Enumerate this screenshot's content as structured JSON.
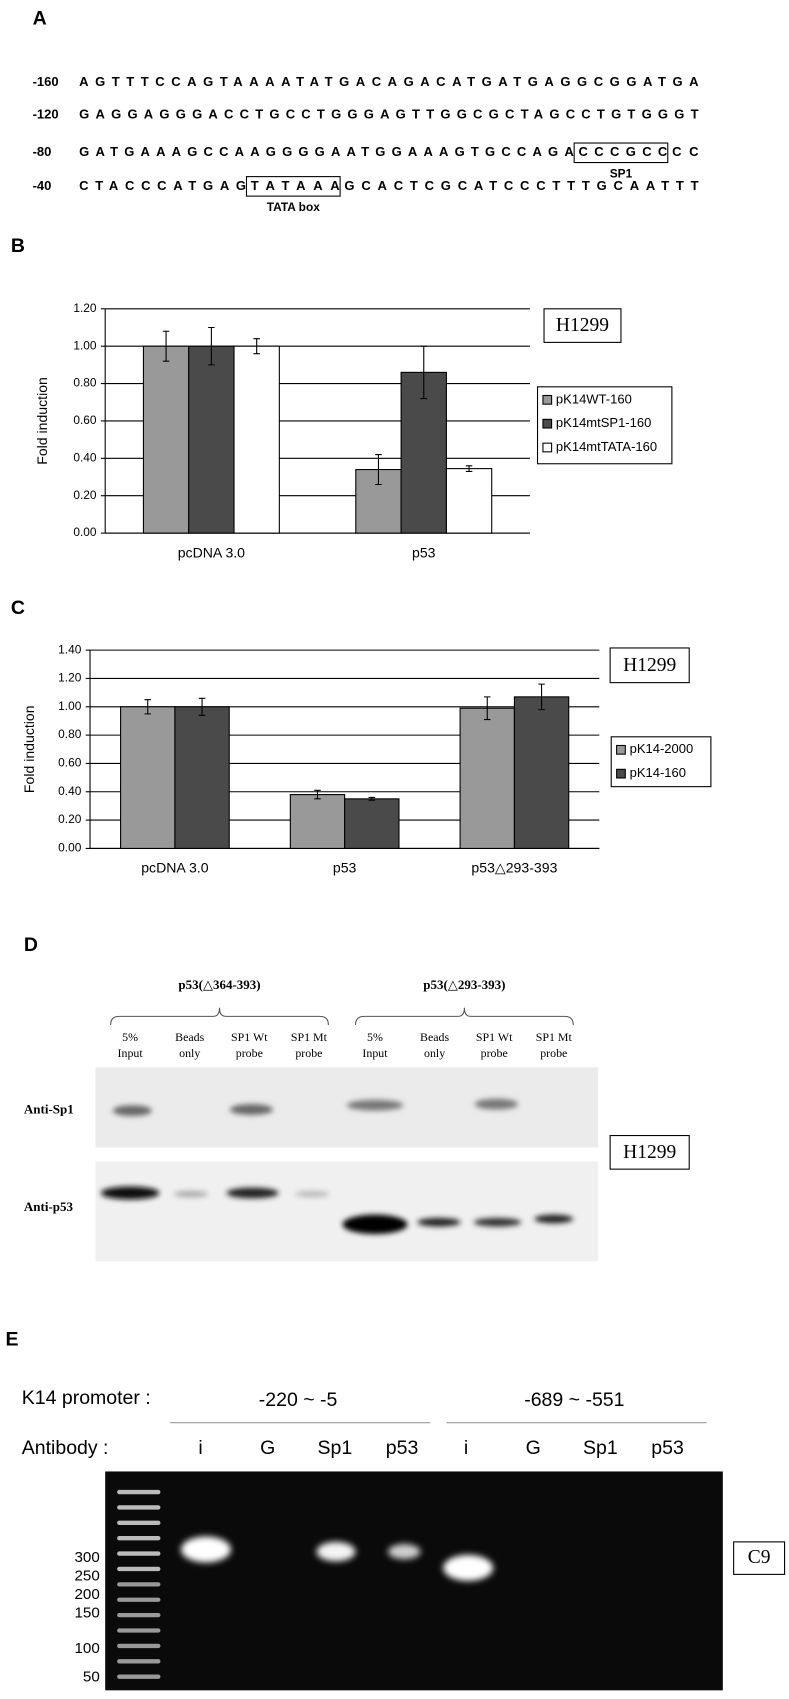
{
  "panel_labels": [
    "A",
    "B",
    "C",
    "D",
    "E"
  ],
  "sequence": {
    "rows": [
      {
        "position": "-160",
        "segments": [
          {
            "text": "AGTTTCCAGTAAAATATGACAGACATGATGAGGCGGATGA"
          }
        ]
      },
      {
        "position": "-120",
        "segments": [
          {
            "text": "GAGGAGGGACCTGCCTGGGAGTTGGCGCTAGCCTGTGGGT"
          }
        ]
      },
      {
        "position": "-80",
        "segments": [
          {
            "text": "GATGAAAGCCAAGGGGAATGGAAAGTGCCAGA"
          },
          {
            "text": "CCCGCC",
            "label": "SP1"
          },
          {
            "text": "CC"
          }
        ]
      },
      {
        "position": "-40",
        "segments": [
          {
            "text": "CTACCCATGAG"
          },
          {
            "text": "TATAAA",
            "label": "TATA box"
          },
          {
            "text": "GCACTCGCATCCCTTTGCAATTT"
          }
        ]
      }
    ]
  },
  "chart_data": [
    {
      "type": "bar",
      "annotation": "H1299",
      "y_label": "Fold induction",
      "categories": [
        "pcDNA 3.0",
        "p53"
      ],
      "series": [
        {
          "name": "pK14WT-160",
          "color": "#999999",
          "values": [
            1.0,
            0.34
          ],
          "errors": [
            0.08,
            0.08
          ]
        },
        {
          "name": "pK14mtSP1-160",
          "color": "#4a4a4a",
          "values": [
            1.0,
            0.86
          ],
          "errors": [
            0.1,
            0.14
          ]
        },
        {
          "name": "pK14mtTATA-160",
          "color": "#ffffff",
          "values": [
            1.0,
            0.345
          ],
          "errors": [
            0.04,
            0.015
          ]
        }
      ],
      "ylim": [
        0,
        1.2
      ],
      "yticks": [
        {
          "value": 0,
          "label": "0.00"
        },
        {
          "value": 0.2,
          "label": "0.20"
        },
        {
          "value": 0.4,
          "label": "0.40"
        },
        {
          "value": 0.6,
          "label": "0.60"
        },
        {
          "value": 0.8,
          "label": "0.80"
        },
        {
          "value": 1,
          "label": "1.00"
        },
        {
          "value": 1.2,
          "label": "1.20"
        }
      ],
      "grid": true
    },
    {
      "type": "bar",
      "annotation": "H1299",
      "y_label": "Fold induction",
      "categories": [
        "pcDNA 3.0",
        "p53",
        "p53△293-393"
      ],
      "series": [
        {
          "name": "pK14-2000",
          "color": "#999999",
          "values": [
            1.0,
            0.38,
            0.99
          ],
          "errors": [
            0.05,
            0.03,
            0.08
          ]
        },
        {
          "name": "pK14-160",
          "color": "#4a4a4a",
          "values": [
            1.0,
            0.35,
            1.07
          ],
          "errors": [
            0.06,
            0.01,
            0.09
          ]
        }
      ],
      "ylim": [
        0,
        1.4
      ],
      "yticks": [
        {
          "value": 0,
          "label": "0.00"
        },
        {
          "value": 0.2,
          "label": "0.20"
        },
        {
          "value": 0.4,
          "label": "0.40"
        },
        {
          "value": 0.6,
          "label": "0.60"
        },
        {
          "value": 0.8,
          "label": "0.80"
        },
        {
          "value": 1,
          "label": "1.00"
        },
        {
          "value": 1.2,
          "label": "1.20"
        },
        {
          "value": 1.4,
          "label": "1.40"
        }
      ],
      "grid": true
    }
  ],
  "pulldown": {
    "groups": [
      {
        "label": "p53(△364-393)",
        "lanes": [
          [
            "5%",
            "Input"
          ],
          [
            "Beads",
            "only"
          ],
          [
            "SP1 Wt",
            "probe"
          ],
          [
            "SP1 Mt",
            "probe"
          ]
        ]
      },
      {
        "label": "p53(△293-393)",
        "lanes": [
          [
            "5%",
            "Input"
          ],
          [
            "Beads",
            "only"
          ],
          [
            "SP1 Wt",
            "probe"
          ],
          [
            "SP1 Mt",
            "probe"
          ]
        ]
      }
    ],
    "rows": [
      "Anti-Sp1",
      "Anti-p53"
    ],
    "cell_line": "H1299"
  },
  "chip": {
    "promoter_label": "K14 promoter :",
    "antibody_label": "Antibody :",
    "regions": [
      {
        "label": "-220 ~ -5",
        "lanes": [
          "i",
          "G",
          "Sp1",
          "p53"
        ]
      },
      {
        "label": "-689 ~ -551",
        "lanes": [
          "i",
          "G",
          "Sp1",
          "p53"
        ]
      }
    ],
    "ladder": [
      300,
      250,
      200,
      150,
      100,
      50
    ],
    "cell_line": "C9"
  }
}
